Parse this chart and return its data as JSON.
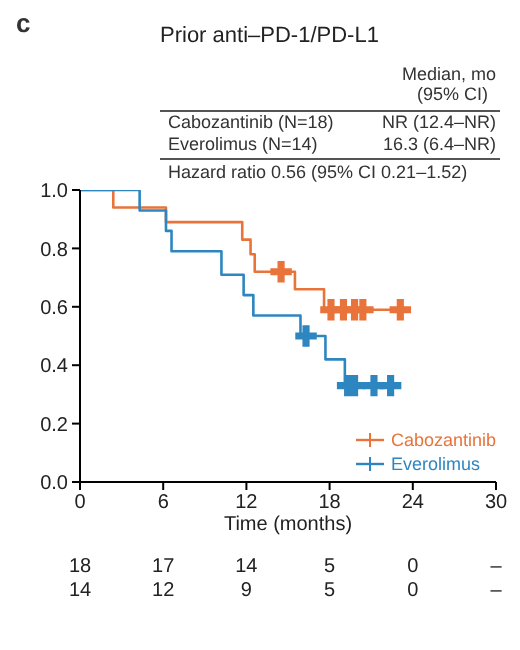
{
  "chart_data": {
    "type": "step",
    "title": "Prior anti–PD-1/PD-L1",
    "xlabel": "Time (months)",
    "annotations": [
      "c",
      "Median, mo",
      "(95% CI)",
      "Cabozantinib (N=18)",
      "NR (12.4–NR)",
      "Everolimus (N=14)",
      "16.3 (6.4–NR)",
      "Hazard ratio 0.56 (95% CI 0.21–1.52)",
      "18",
      "17",
      "14",
      "5",
      "0",
      "–",
      "14",
      "12",
      "9",
      "5",
      "0",
      "–"
    ],
    "series": [
      {
        "name": "Cabozantinib",
        "color": "#e8743b",
        "x": [
          0,
          2.4,
          6.2,
          11.7,
          12.3,
          12.6,
          15.5,
          17.6,
          23.1
        ],
        "values": [
          1,
          0.94,
          0.89,
          0.83,
          0.78,
          0.72,
          0.66,
          0.59,
          0.59
        ]
      },
      {
        "name": "Everolimus",
        "color": "#2e86c1",
        "x": [
          0,
          4.3,
          6.2,
          6.6,
          10.2,
          11.8,
          12.5,
          15.9,
          17.7,
          19.1,
          22.4
        ],
        "values": [
          1,
          0.93,
          0.86,
          0.79,
          0.71,
          0.64,
          0.57,
          0.5,
          0.42,
          0.33,
          0.33
        ]
      },
      {
        "type": "scatter",
        "marker": "cross",
        "color": "#e8743b",
        "x": [
          14.5,
          18.1,
          19,
          19.8,
          20.4,
          23.1
        ],
        "values": [
          0.72,
          0.59,
          0.59,
          0.59,
          0.59,
          0.59
        ]
      },
      {
        "type": "scatter",
        "marker": "cross",
        "color": "#2e86c1",
        "x": [
          16.3,
          19.3,
          19.8,
          21.2,
          22.4
        ],
        "values": [
          0.5,
          0.33,
          0.33,
          0.33,
          0.33
        ]
      }
    ],
    "xlim": [
      0,
      30
    ],
    "xticks": [
      0,
      6,
      12,
      18,
      24,
      30
    ],
    "ylim": [
      0,
      1
    ],
    "yticks": [
      {
        "value": 0,
        "label": "0.0"
      },
      {
        "value": 0.2,
        "label": "0.2"
      },
      {
        "value": 0.4,
        "label": "0.4"
      },
      {
        "value": 0.6,
        "label": "0.6"
      },
      {
        "value": 0.8,
        "label": "0.8"
      },
      {
        "value": 1,
        "label": "1.0"
      }
    ],
    "grid": false,
    "legend": "bottom right",
    "marker": "none",
    "line_style": "solid"
  }
}
